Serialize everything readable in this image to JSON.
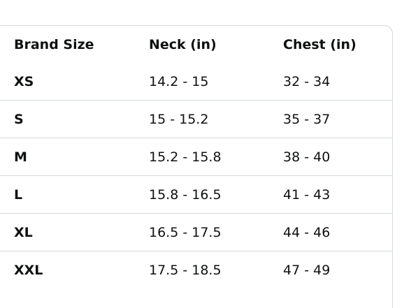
{
  "table": {
    "header": [
      "Brand Size",
      "Neck (in)",
      "Chest (in)"
    ],
    "rows": [
      [
        "XS",
        "14.2 - 15",
        "32 - 34"
      ],
      [
        "S",
        "15 - 15.2",
        "35 - 37"
      ],
      [
        "M",
        "15.2 - 15.8",
        "38 - 40"
      ],
      [
        "L",
        "15.8 - 16.5",
        "41 - 43"
      ],
      [
        "XL",
        "16.5 - 17.5",
        "44 - 46"
      ],
      [
        "XXL",
        "17.5 - 18.5",
        "47 - 49"
      ]
    ]
  }
}
